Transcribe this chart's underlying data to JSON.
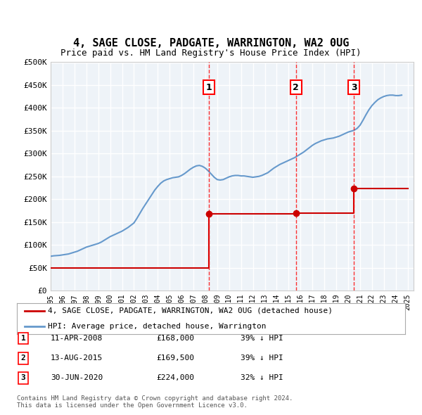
{
  "title": "4, SAGE CLOSE, PADGATE, WARRINGTON, WA2 0UG",
  "subtitle": "Price paid vs. HM Land Registry's House Price Index (HPI)",
  "ylabel_ticks": [
    "£0",
    "£50K",
    "£100K",
    "£150K",
    "£200K",
    "£250K",
    "£300K",
    "£350K",
    "£400K",
    "£450K",
    "£500K"
  ],
  "ytick_values": [
    0,
    50000,
    100000,
    150000,
    200000,
    250000,
    300000,
    350000,
    400000,
    450000,
    500000
  ],
  "xlim": [
    1995.0,
    2025.5
  ],
  "ylim": [
    0,
    500000
  ],
  "sale_dates": [
    2008.28,
    2015.62,
    2020.5
  ],
  "sale_prices": [
    168000,
    169500,
    224000
  ],
  "sale_labels": [
    "1",
    "2",
    "3"
  ],
  "sale_info": [
    {
      "label": "1",
      "date": "11-APR-2008",
      "price": "£168,000",
      "hpi": "39% ↓ HPI"
    },
    {
      "label": "2",
      "date": "13-AUG-2015",
      "price": "£169,500",
      "hpi": "39% ↓ HPI"
    },
    {
      "label": "3",
      "date": "30-JUN-2020",
      "price": "£224,000",
      "hpi": "32% ↓ HPI"
    }
  ],
  "property_line_color": "#cc0000",
  "hpi_line_color": "#6699cc",
  "background_color": "#eef3f8",
  "grid_color": "#ffffff",
  "legend_label_property": "4, SAGE CLOSE, PADGATE, WARRINGTON, WA2 0UG (detached house)",
  "legend_label_hpi": "HPI: Average price, detached house, Warrington",
  "footer": "Contains HM Land Registry data © Crown copyright and database right 2024.\nThis data is licensed under the Open Government Licence v3.0.",
  "hpi_data_x": [
    1995,
    1995.25,
    1995.5,
    1995.75,
    1996,
    1996.25,
    1996.5,
    1996.75,
    1997,
    1997.25,
    1997.5,
    1997.75,
    1998,
    1998.25,
    1998.5,
    1998.75,
    1999,
    1999.25,
    1999.5,
    1999.75,
    2000,
    2000.25,
    2000.5,
    2000.75,
    2001,
    2001.25,
    2001.5,
    2001.75,
    2002,
    2002.25,
    2002.5,
    2002.75,
    2003,
    2003.25,
    2003.5,
    2003.75,
    2004,
    2004.25,
    2004.5,
    2004.75,
    2005,
    2005.25,
    2005.5,
    2005.75,
    2006,
    2006.25,
    2006.5,
    2006.75,
    2007,
    2007.25,
    2007.5,
    2007.75,
    2008,
    2008.25,
    2008.5,
    2008.75,
    2009,
    2009.25,
    2009.5,
    2009.75,
    2010,
    2010.25,
    2010.5,
    2010.75,
    2011,
    2011.25,
    2011.5,
    2011.75,
    2012,
    2012.25,
    2012.5,
    2012.75,
    2013,
    2013.25,
    2013.5,
    2013.75,
    2014,
    2014.25,
    2014.5,
    2014.75,
    2015,
    2015.25,
    2015.5,
    2015.75,
    2016,
    2016.25,
    2016.5,
    2016.75,
    2017,
    2017.25,
    2017.5,
    2017.75,
    2018,
    2018.25,
    2018.5,
    2018.75,
    2019,
    2019.25,
    2019.5,
    2019.75,
    2020,
    2020.25,
    2020.5,
    2020.75,
    2021,
    2021.25,
    2021.5,
    2021.75,
    2022,
    2022.25,
    2022.5,
    2022.75,
    2023,
    2023.25,
    2023.5,
    2023.75,
    2024,
    2024.25,
    2024.5
  ],
  "hpi_data_y": [
    75000,
    76000,
    76500,
    77000,
    78000,
    79000,
    80000,
    82000,
    84000,
    86000,
    89000,
    92000,
    95000,
    97000,
    99000,
    101000,
    103000,
    106000,
    110000,
    114000,
    118000,
    121000,
    124000,
    127000,
    130000,
    134000,
    138000,
    143000,
    148000,
    158000,
    169000,
    180000,
    190000,
    200000,
    210000,
    220000,
    228000,
    235000,
    240000,
    243000,
    245000,
    247000,
    248000,
    249000,
    252000,
    256000,
    261000,
    266000,
    270000,
    273000,
    274000,
    272000,
    268000,
    262000,
    255000,
    248000,
    243000,
    242000,
    243000,
    246000,
    249000,
    251000,
    252000,
    252000,
    251000,
    251000,
    250000,
    249000,
    248000,
    249000,
    250000,
    252000,
    255000,
    258000,
    263000,
    268000,
    272000,
    276000,
    279000,
    282000,
    285000,
    288000,
    291000,
    295000,
    299000,
    303000,
    308000,
    313000,
    318000,
    322000,
    325000,
    328000,
    330000,
    332000,
    333000,
    334000,
    336000,
    338000,
    341000,
    344000,
    347000,
    349000,
    351000,
    355000,
    362000,
    373000,
    385000,
    396000,
    405000,
    412000,
    418000,
    422000,
    425000,
    427000,
    428000,
    428000,
    427000,
    427000,
    428000
  ],
  "property_data_x": [
    1995,
    2008.28,
    2008.28,
    2015.62,
    2015.62,
    2020.5,
    2020.5,
    2025.0
  ],
  "property_data_y": [
    50000,
    50000,
    168000,
    168000,
    169500,
    169500,
    224000,
    224000
  ]
}
